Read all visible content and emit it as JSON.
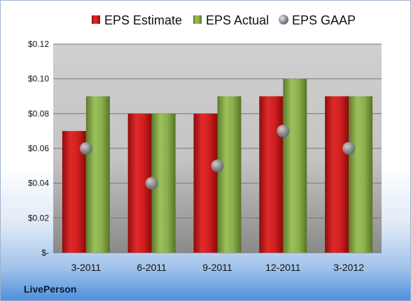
{
  "chart_data": {
    "type": "bar",
    "categories": [
      "3-2011",
      "6-2011",
      "9-2011",
      "12-2011",
      "3-2012"
    ],
    "series": [
      {
        "name": "EPS Estimate",
        "kind": "bar",
        "color": "#c41a1a",
        "values": [
          0.07,
          0.08,
          0.08,
          0.09,
          0.09
        ]
      },
      {
        "name": "EPS Actual",
        "kind": "bar",
        "color": "#86a84a",
        "values": [
          0.09,
          0.08,
          0.09,
          0.1,
          0.09
        ]
      },
      {
        "name": "EPS GAAP",
        "kind": "marker",
        "color": "#9aa3ad",
        "values": [
          0.06,
          0.04,
          0.05,
          0.07,
          0.06
        ]
      }
    ],
    "ylim": [
      0,
      0.12
    ],
    "yticks": [
      0,
      0.02,
      0.04,
      0.06,
      0.08,
      0.1,
      0.12
    ],
    "ytick_labels": [
      "$-",
      "$0.02",
      "$0.04",
      "$0.06",
      "$0.08",
      "$0.10",
      "$0.12"
    ],
    "grid": true,
    "legend": "top"
  },
  "company_label": "LivePerson"
}
